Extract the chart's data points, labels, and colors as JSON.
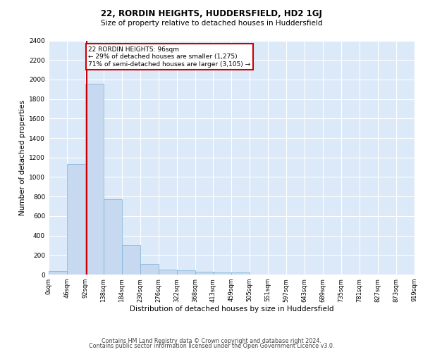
{
  "title1": "22, RORDIN HEIGHTS, HUDDERSFIELD, HD2 1GJ",
  "title2": "Size of property relative to detached houses in Huddersfield",
  "xlabel": "Distribution of detached houses by size in Huddersfield",
  "ylabel": "Number of detached properties",
  "footer1": "Contains HM Land Registry data © Crown copyright and database right 2024.",
  "footer2": "Contains public sector information licensed under the Open Government Licence v3.0.",
  "annotation_title": "22 RORDIN HEIGHTS: 96sqm",
  "annotation_line1": "← 29% of detached houses are smaller (1,275)",
  "annotation_line2": "71% of semi-detached houses are larger (3,105) →",
  "bar_color": "#c6d9f0",
  "bar_edge_color": "#7bafd4",
  "property_line_color": "#cc0000",
  "property_size_sqm": 96,
  "bin_edges": [
    0,
    46,
    92,
    138,
    184,
    230,
    276,
    322,
    368,
    413,
    459,
    505,
    551,
    597,
    643,
    689,
    735,
    781,
    827,
    873,
    919
  ],
  "bar_heights": [
    35,
    1135,
    1955,
    775,
    300,
    110,
    50,
    40,
    30,
    20,
    20,
    0,
    0,
    0,
    0,
    0,
    0,
    0,
    0,
    0
  ],
  "ylim": [
    0,
    2400
  ],
  "yticks": [
    0,
    200,
    400,
    600,
    800,
    1000,
    1200,
    1400,
    1600,
    1800,
    2000,
    2200,
    2400
  ],
  "tick_labels": [
    "0sqm",
    "46sqm",
    "92sqm",
    "138sqm",
    "184sqm",
    "230sqm",
    "276sqm",
    "322sqm",
    "368sqm",
    "413sqm",
    "459sqm",
    "505sqm",
    "551sqm",
    "597sqm",
    "643sqm",
    "689sqm",
    "735sqm",
    "781sqm",
    "827sqm",
    "873sqm",
    "919sqm"
  ],
  "plot_bg_color": "#dce9f8",
  "grid_color": "#ffffff",
  "fig_width": 6.0,
  "fig_height": 5.0,
  "dpi": 100
}
